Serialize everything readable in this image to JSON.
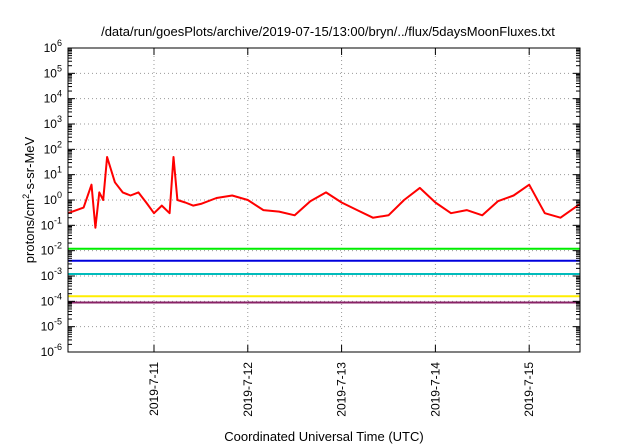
{
  "chart_data": {
    "type": "line",
    "title": "/data/run/goesPlots/archive/2019-07-15/13:00/bryn/../flux/5daysMoonFluxes.txt",
    "xlabel": "Coordinated Universal Time (UTC)",
    "ylabel": {
      "base": "protons/cm",
      "sup": "2",
      "rest": "-s-sr-MeV"
    },
    "y_scale": "log",
    "ylim": [
      1e-06,
      1000000.0
    ],
    "y_ticks": [
      {
        "exp": "-6"
      },
      {
        "exp": "-5"
      },
      {
        "exp": "-4"
      },
      {
        "exp": "-3"
      },
      {
        "exp": "-2"
      },
      {
        "exp": "-1"
      },
      {
        "exp": "0"
      },
      {
        "exp": "1"
      },
      {
        "exp": "2"
      },
      {
        "exp": "3"
      },
      {
        "exp": "4"
      },
      {
        "exp": "5"
      },
      {
        "exp": "6"
      }
    ],
    "xlim": [
      "2019-07-10 02:00",
      "2019-07-15 13:00"
    ],
    "x_ticks": [
      "2019-7-11",
      "2019-7-12",
      "2019-7-13",
      "2019-7-14",
      "2019-7-15"
    ],
    "grid": true,
    "series": [
      {
        "color": "#ff0000",
        "x": [
          "2019-07-10 02:00",
          "2019-07-10 06:00",
          "2019-07-10 08:00",
          "2019-07-10 09:00",
          "2019-07-10 10:00",
          "2019-07-10 11:00",
          "2019-07-10 12:00",
          "2019-07-10 14:00",
          "2019-07-10 16:00",
          "2019-07-10 18:00",
          "2019-07-10 20:00",
          "2019-07-10 22:00",
          "2019-07-11 00:00",
          "2019-07-11 02:00",
          "2019-07-11 04:00",
          "2019-07-11 05:00",
          "2019-07-11 06:00",
          "2019-07-11 08:00",
          "2019-07-11 10:00",
          "2019-07-11 12:00",
          "2019-07-11 16:00",
          "2019-07-11 20:00",
          "2019-07-12 00:00",
          "2019-07-12 04:00",
          "2019-07-12 08:00",
          "2019-07-12 12:00",
          "2019-07-12 16:00",
          "2019-07-12 20:00",
          "2019-07-13 00:00",
          "2019-07-13 04:00",
          "2019-07-13 08:00",
          "2019-07-13 12:00",
          "2019-07-13 16:00",
          "2019-07-13 20:00",
          "2019-07-14 00:00",
          "2019-07-14 04:00",
          "2019-07-14 08:00",
          "2019-07-14 12:00",
          "2019-07-14 16:00",
          "2019-07-14 20:00",
          "2019-07-15 00:00",
          "2019-07-15 04:00",
          "2019-07-15 08:00",
          "2019-07-15 13:00"
        ],
        "values": [
          0.3,
          0.5,
          4,
          0.08,
          2,
          1,
          50,
          5,
          2,
          1.5,
          2,
          0.8,
          0.3,
          0.6,
          0.3,
          50,
          1,
          0.8,
          0.6,
          0.7,
          1.2,
          1.5,
          1,
          0.4,
          0.35,
          0.25,
          0.9,
          2,
          0.8,
          0.4,
          0.2,
          0.25,
          1,
          3,
          0.8,
          0.3,
          0.4,
          0.25,
          0.9,
          1.5,
          4,
          0.3,
          0.2,
          0.7
        ]
      },
      {
        "color": "#00ee00",
        "x": [
          "2019-07-10 02:00",
          "2019-07-10 12:00",
          "2019-07-11 00:00",
          "2019-07-11 12:00",
          "2019-07-12 00:00",
          "2019-07-12 12:00",
          "2019-07-13 00:00",
          "2019-07-13 12:00",
          "2019-07-14 00:00",
          "2019-07-14 12:00",
          "2019-07-15 00:00",
          "2019-07-15 13:00"
        ],
        "values": [
          0.012,
          0.012,
          0.012,
          0.012,
          0.012,
          0.012,
          0.012,
          0.012,
          0.012,
          0.012,
          0.012,
          0.012
        ]
      },
      {
        "color": "#0000dd",
        "x": [
          "2019-07-10 02:00",
          "2019-07-10 12:00",
          "2019-07-11 00:00",
          "2019-07-11 12:00",
          "2019-07-12 00:00",
          "2019-07-12 12:00",
          "2019-07-13 00:00",
          "2019-07-13 12:00",
          "2019-07-14 00:00",
          "2019-07-14 12:00",
          "2019-07-15 00:00",
          "2019-07-15 13:00"
        ],
        "values": [
          0.004,
          0.004,
          0.004,
          0.004,
          0.004,
          0.004,
          0.004,
          0.004,
          0.004,
          0.004,
          0.004,
          0.004
        ]
      },
      {
        "color": "#00bbbb",
        "x": [
          "2019-07-10 02:00",
          "2019-07-10 12:00",
          "2019-07-11 00:00",
          "2019-07-11 12:00",
          "2019-07-12 00:00",
          "2019-07-12 12:00",
          "2019-07-13 00:00",
          "2019-07-13 12:00",
          "2019-07-14 00:00",
          "2019-07-14 12:00",
          "2019-07-15 00:00",
          "2019-07-15 13:00"
        ],
        "values": [
          0.0012,
          0.0012,
          0.0012,
          0.0012,
          0.0012,
          0.0012,
          0.0012,
          0.0012,
          0.0012,
          0.0012,
          0.0012,
          0.0012
        ]
      },
      {
        "color": "#ffee00",
        "x": [
          "2019-07-10 02:00",
          "2019-07-10 12:00",
          "2019-07-11 00:00",
          "2019-07-11 12:00",
          "2019-07-12 00:00",
          "2019-07-12 12:00",
          "2019-07-13 00:00",
          "2019-07-13 12:00",
          "2019-07-14 00:00",
          "2019-07-14 12:00",
          "2019-07-15 00:00",
          "2019-07-15 13:00"
        ],
        "values": [
          0.00016,
          0.00016,
          0.00016,
          0.00016,
          0.00016,
          0.00016,
          0.00016,
          0.00016,
          0.00016,
          0.00016,
          0.00016,
          0.00016
        ]
      },
      {
        "color": "#882266",
        "x": [
          "2019-07-10 02:00",
          "2019-07-10 12:00",
          "2019-07-11 00:00",
          "2019-07-11 12:00",
          "2019-07-12 00:00",
          "2019-07-12 12:00",
          "2019-07-13 00:00",
          "2019-07-13 12:00",
          "2019-07-14 00:00",
          "2019-07-14 12:00",
          "2019-07-15 00:00",
          "2019-07-15 13:00"
        ],
        "values": [
          9e-05,
          9e-05,
          9e-05,
          9e-05,
          9e-05,
          9e-05,
          9e-05,
          9e-05,
          9e-05,
          9e-05,
          9e-05,
          9e-05
        ]
      }
    ]
  }
}
